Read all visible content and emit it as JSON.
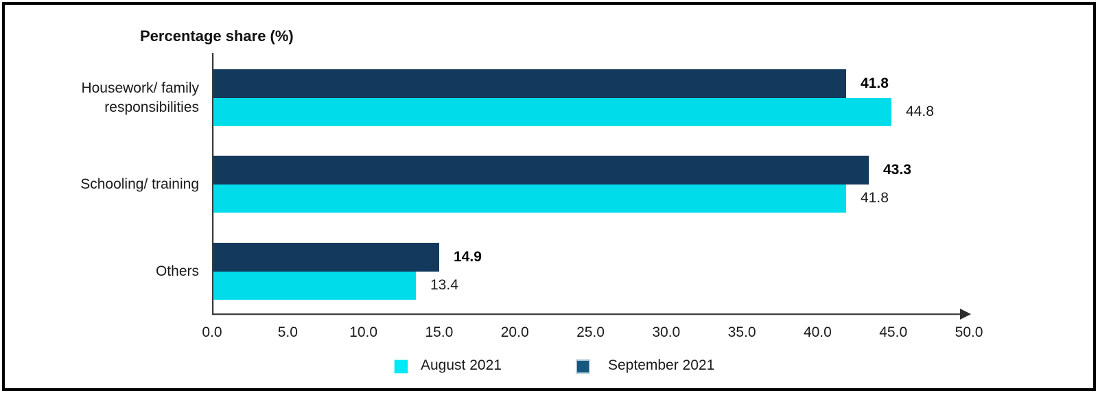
{
  "chart_data": {
    "type": "bar",
    "orientation": "horizontal",
    "title": "Percentage share (%)",
    "categories": [
      "Housework/ family\nresponsibilities",
      "Schooling/ training",
      "Others"
    ],
    "series": [
      {
        "name": "September 2021",
        "color": "#133A5C",
        "values": [
          41.8,
          43.3,
          14.9
        ],
        "bold_labels": true
      },
      {
        "name": "August 2021",
        "color": "#00DCEA",
        "values": [
          44.8,
          41.8,
          13.4
        ],
        "bold_labels": false
      }
    ],
    "xlim": [
      0,
      50
    ],
    "x_tick_labels": [
      "0.0",
      "5.0",
      "10.0",
      "15.0",
      "20.0",
      "25.0",
      "30.0",
      "35.0",
      "40.0",
      "45.0",
      "50.0"
    ],
    "grid": false,
    "axis_arrow": true,
    "legend_position": "bottom",
    "legend": [
      {
        "label": "August 2021",
        "color": "#00E9F6"
      },
      {
        "label": "September 2021",
        "color": "#15577E"
      }
    ]
  }
}
